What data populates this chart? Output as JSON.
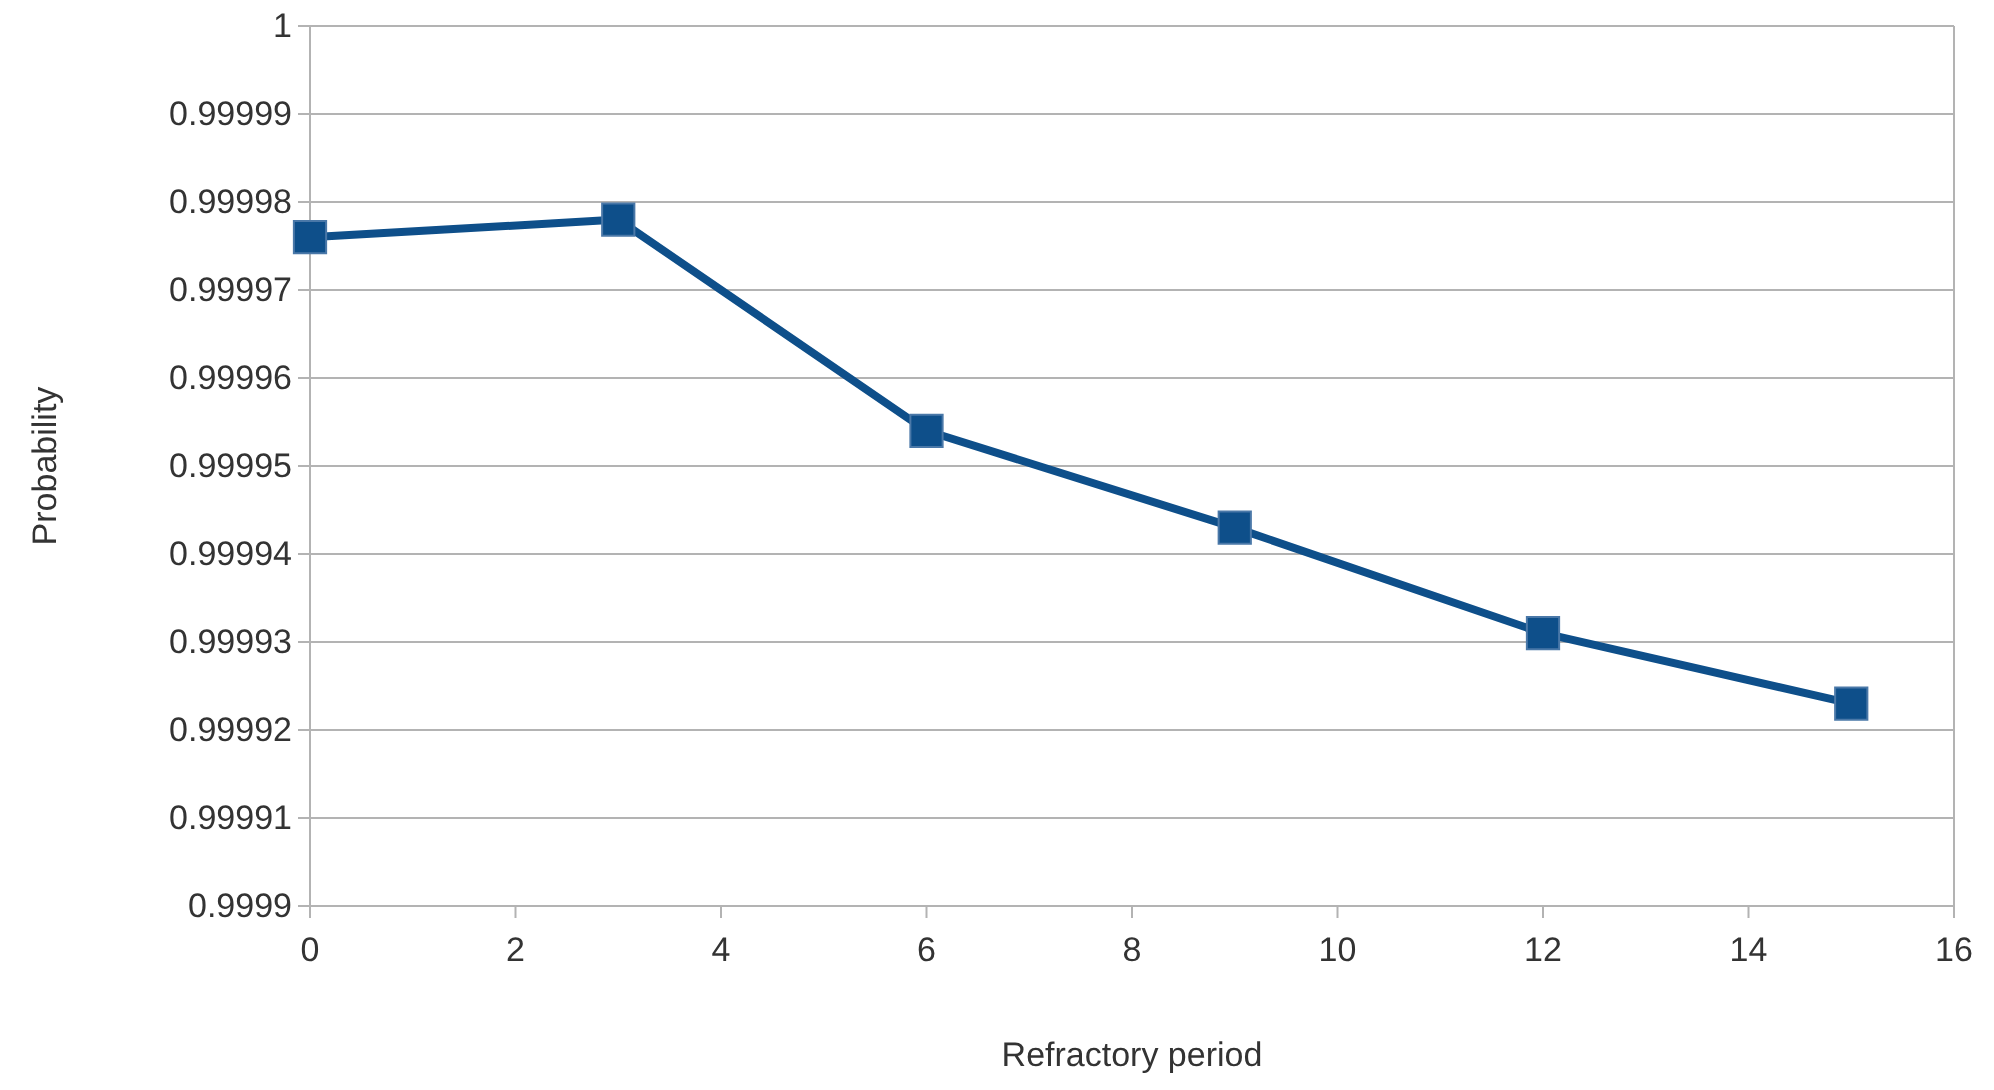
{
  "chart_data": {
    "type": "line",
    "xlabel": "Refractory period",
    "ylabel": "Probability",
    "x": [
      0,
      3,
      6,
      9,
      12,
      15
    ],
    "series": [
      {
        "color": "#0e4f8a",
        "values": [
          0.999976,
          0.999978,
          0.999954,
          0.999943,
          0.999931,
          0.999923
        ]
      }
    ],
    "xlim": [
      0,
      16
    ],
    "xticks": [
      0,
      2,
      4,
      6,
      8,
      10,
      12,
      14,
      16
    ],
    "ylim": [
      0.9999,
      1
    ],
    "yticks": [
      0.9999,
      0.99991,
      0.99992,
      0.99993,
      0.99994,
      0.99995,
      0.99996,
      0.99997,
      0.99998,
      0.99999,
      1
    ],
    "grid": "y",
    "marker": "square",
    "line_style": "solid"
  }
}
